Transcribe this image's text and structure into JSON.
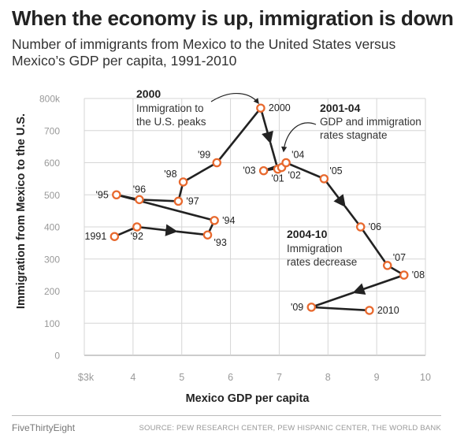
{
  "header": {
    "title": "When the economy is up, immigration is down",
    "subtitle": "Number of immigrants from Mexico to the United States versus Mexico’s GDP per capita, 1991-2010"
  },
  "footer": {
    "brand": "FiveThirtyEight",
    "source": "SOURCE: PEW RESEARCH CENTER, PEW HISPANIC CENTER, THE WORLD BANK"
  },
  "colors": {
    "line": "#222222",
    "marker": "#e8692e",
    "grid": "#d6d6d6",
    "tick_text": "#999999"
  },
  "chart_data": {
    "type": "line",
    "xlabel": "Mexico GDP per capita",
    "ylabel": "Immigration from Mexico to the U.S.",
    "xlim": [
      3,
      10
    ],
    "ylim": [
      0,
      800
    ],
    "x_ticks": [
      {
        "value": 3,
        "label": "$3k"
      },
      {
        "value": 4,
        "label": "4"
      },
      {
        "value": 5,
        "label": "5"
      },
      {
        "value": 6,
        "label": "6"
      },
      {
        "value": 7,
        "label": "7"
      },
      {
        "value": 8,
        "label": "8"
      },
      {
        "value": 9,
        "label": "9"
      },
      {
        "value": 10,
        "label": "10"
      }
    ],
    "y_ticks": [
      {
        "value": 0,
        "label": "0"
      },
      {
        "value": 100,
        "label": "100"
      },
      {
        "value": 200,
        "label": "200"
      },
      {
        "value": 300,
        "label": "300"
      },
      {
        "value": 400,
        "label": "400"
      },
      {
        "value": 500,
        "label": "500"
      },
      {
        "value": 600,
        "label": "600"
      },
      {
        "value": 700,
        "label": "700"
      },
      {
        "value": 800,
        "label": "800k"
      }
    ],
    "grid": true,
    "points": [
      {
        "label": "1991",
        "x": 3.62,
        "y": 370,
        "label_pos": "left"
      },
      {
        "label": "'92",
        "x": 4.08,
        "y": 400,
        "label_pos": "below"
      },
      {
        "label": "'93",
        "x": 5.53,
        "y": 375,
        "label_pos": "below-right"
      },
      {
        "label": "'94",
        "x": 5.67,
        "y": 420,
        "label_pos": "right"
      },
      {
        "label": "'95",
        "x": 3.66,
        "y": 500,
        "label_pos": "left"
      },
      {
        "label": "'96",
        "x": 4.13,
        "y": 485,
        "label_pos": "above"
      },
      {
        "label": "'97",
        "x": 4.93,
        "y": 480,
        "label_pos": "right"
      },
      {
        "label": "'98",
        "x": 5.03,
        "y": 540,
        "label_pos": "above-left"
      },
      {
        "label": "'99",
        "x": 5.72,
        "y": 600,
        "label_pos": "above-left"
      },
      {
        "label": "2000",
        "x": 6.62,
        "y": 770,
        "label_pos": "right"
      },
      {
        "label": "'01",
        "x": 6.97,
        "y": 580,
        "label_pos": "below"
      },
      {
        "label": "'02",
        "x": 7.05,
        "y": 585,
        "label_pos": "below-right"
      },
      {
        "label": "'03",
        "x": 6.68,
        "y": 575,
        "label_pos": "left"
      },
      {
        "label": "'04",
        "x": 7.14,
        "y": 600,
        "label_pos": "above-right"
      },
      {
        "label": "'05",
        "x": 7.92,
        "y": 550,
        "label_pos": "above-right"
      },
      {
        "label": "'06",
        "x": 8.67,
        "y": 400,
        "label_pos": "right"
      },
      {
        "label": "'07",
        "x": 9.22,
        "y": 280,
        "label_pos": "above-right"
      },
      {
        "label": "'08",
        "x": 9.56,
        "y": 250,
        "label_pos": "right"
      },
      {
        "label": "'09",
        "x": 7.66,
        "y": 150,
        "label_pos": "left"
      },
      {
        "label": "2010",
        "x": 8.85,
        "y": 140,
        "label_pos": "right"
      }
    ],
    "direction_arrows_between": [
      [
        1,
        2
      ],
      [
        9,
        10
      ],
      [
        14,
        15
      ],
      [
        17,
        18
      ]
    ],
    "annotations": [
      {
        "heading": "2000",
        "text": [
          "Immigration to",
          "the U.S. peaks"
        ]
      },
      {
        "heading": "2001-04",
        "text": [
          "GDP and immigration",
          "rates stagnate"
        ]
      },
      {
        "heading": "2004-10",
        "text": [
          "Immigration",
          "rates decrease"
        ]
      }
    ]
  }
}
